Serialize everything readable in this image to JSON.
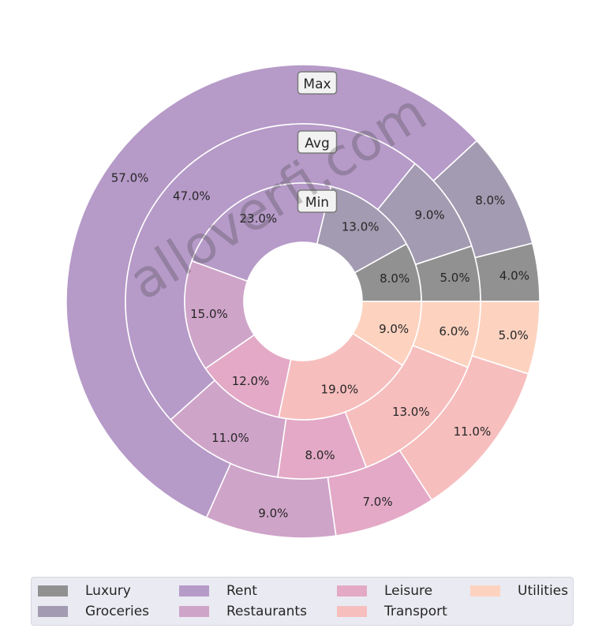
{
  "chart_data": {
    "type": "pie",
    "rings": [
      {
        "name": "Max",
        "values": [
          4.0,
          8.0,
          57.0,
          9.0,
          7.0,
          11.0,
          5.0
        ],
        "labels": [
          "4.0%",
          "8.0%",
          "57.0%",
          "9.0%",
          "7.0%",
          "11.0%",
          "5.0%"
        ]
      },
      {
        "name": "Avg",
        "values": [
          5.0,
          9.0,
          47.0,
          11.0,
          8.0,
          13.0,
          6.0
        ],
        "labels": [
          "5.0%",
          "9.0%",
          "47.0%",
          "11.0%",
          "8.0%",
          "13.0%",
          "6.0%"
        ]
      },
      {
        "name": "Min",
        "values": [
          8.0,
          13.0,
          23.0,
          15.0,
          12.0,
          19.0,
          9.0
        ],
        "labels": [
          "8.0%",
          "13.0%",
          "23.0%",
          "15.0%",
          "12.0%",
          "19.0%",
          "9.0%"
        ]
      }
    ],
    "categories": [
      "Luxury",
      "Groceries",
      "Rent",
      "Restaurants",
      "Leisure",
      "Transport",
      "Utilities"
    ],
    "colors": [
      "#919191",
      "#a39bb1",
      "#b69ac8",
      "#cfa4c9",
      "#e3a9c6",
      "#f7bebe",
      "#fdd3c0"
    ],
    "legend_order": [
      "Luxury",
      "Groceries",
      "Rent",
      "Restaurants",
      "Leisure",
      "Transport",
      "Utilities"
    ],
    "legend_position": "bottom"
  },
  "watermark": "alloverfi.com"
}
